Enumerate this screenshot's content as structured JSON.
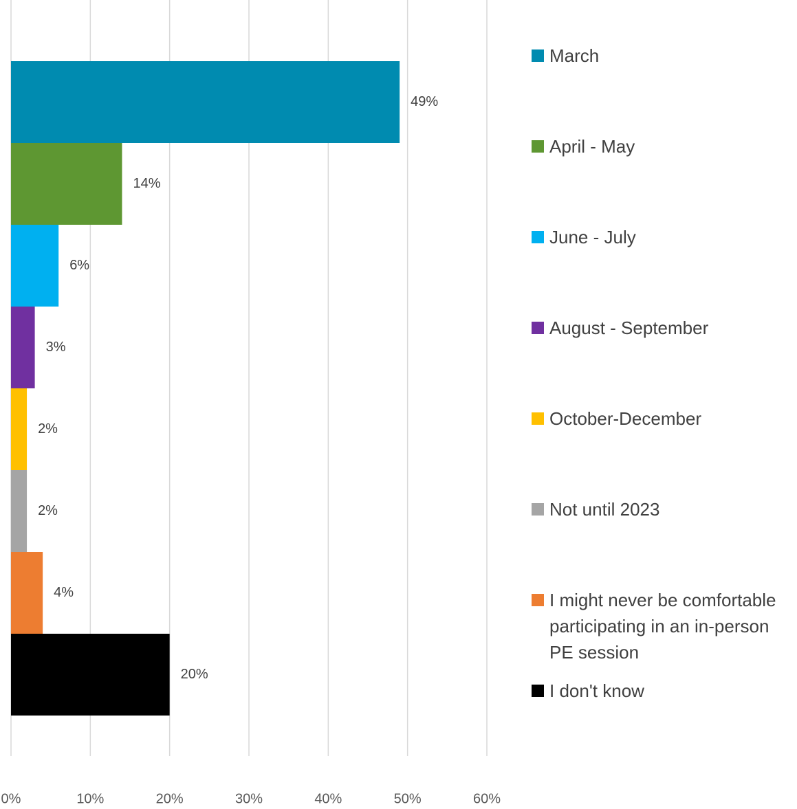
{
  "chart_data": {
    "type": "bar",
    "orientation": "horizontal",
    "series": [
      {
        "name": "March",
        "color": "#008bb0",
        "values": [
          49
        ],
        "value_labels": [
          "49%"
        ]
      },
      {
        "name": "April - May",
        "color": "#5e9732",
        "values": [
          14
        ],
        "value_labels": [
          "14%"
        ]
      },
      {
        "name": "June - July",
        "color": "#00b0f0",
        "values": [
          6
        ],
        "value_labels": [
          "6%"
        ]
      },
      {
        "name": "August - September",
        "color": "#7030a0",
        "values": [
          3
        ],
        "value_labels": [
          "3%"
        ]
      },
      {
        "name": "October-December",
        "color": "#ffc000",
        "values": [
          2
        ],
        "value_labels": [
          "2%"
        ]
      },
      {
        "name": "Not until 2023",
        "color": "#a5a5a5",
        "values": [
          2
        ],
        "value_labels": [
          "2%"
        ]
      },
      {
        "name": "I might never be comfortable participating in an in-person PE session",
        "color": "#ed7d31",
        "values": [
          4
        ],
        "value_labels": [
          "4%"
        ]
      },
      {
        "name": "I don't know",
        "color": "#000000",
        "values": [
          20
        ],
        "value_labels": [
          "20%"
        ]
      }
    ],
    "xlim": [
      0,
      60
    ],
    "xticks": [
      {
        "value": 0,
        "label": "0%"
      },
      {
        "value": 10,
        "label": "10%"
      },
      {
        "value": 20,
        "label": "20%"
      },
      {
        "value": 30,
        "label": "30%"
      },
      {
        "value": 40,
        "label": "40%"
      },
      {
        "value": 50,
        "label": "50%"
      },
      {
        "value": 60,
        "label": "60%"
      }
    ],
    "grid": true,
    "legend": "right"
  }
}
